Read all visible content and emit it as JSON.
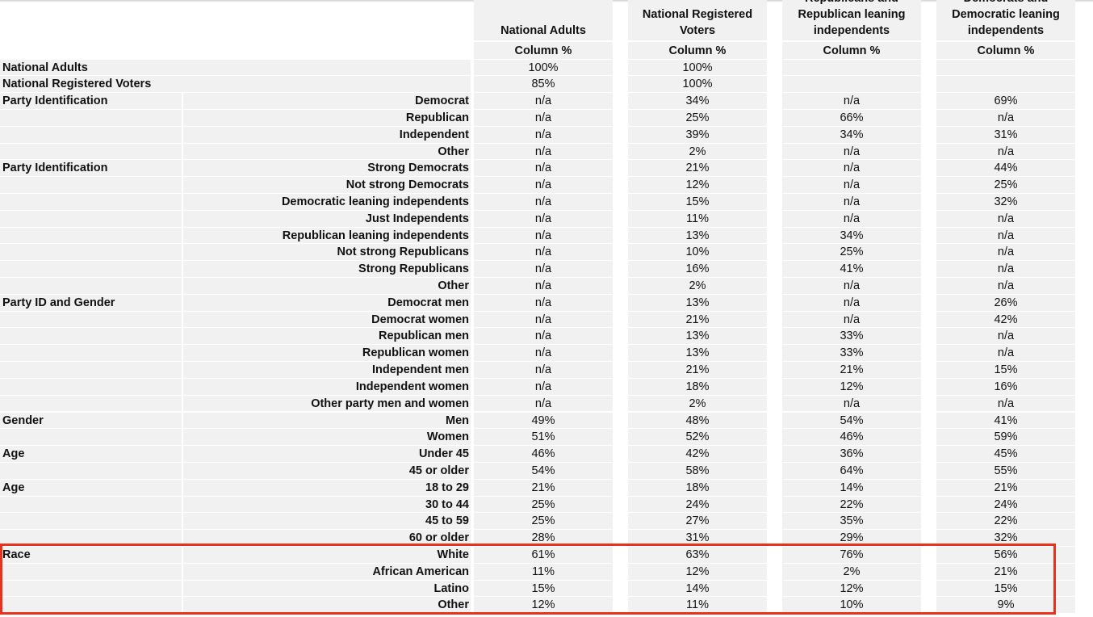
{
  "table": {
    "columns": [
      {
        "name": "National Adults",
        "unit": "Column %"
      },
      {
        "name": "National Registered Voters",
        "unit": "Column %"
      },
      {
        "name": "Republicans and Republican leaning independents",
        "unit": "Column %"
      },
      {
        "name": "Democrats and Democratic leaning independents",
        "unit": "Column %"
      }
    ],
    "rows": [
      {
        "group": "National Adults",
        "values": [
          "100%",
          "100%",
          null,
          null
        ]
      },
      {
        "group": "National Registered Voters",
        "values": [
          "85%",
          "100%",
          null,
          null
        ]
      },
      {
        "group": "Party Identification",
        "label": "Democrat",
        "values": [
          "n/a",
          "34%",
          "n/a",
          "69%"
        ]
      },
      {
        "label": "Republican",
        "values": [
          "n/a",
          "25%",
          "66%",
          "n/a"
        ]
      },
      {
        "label": "Independent",
        "values": [
          "n/a",
          "39%",
          "34%",
          "31%"
        ]
      },
      {
        "label": "Other",
        "values": [
          "n/a",
          "2%",
          "n/a",
          "n/a"
        ]
      },
      {
        "group": "Party Identification",
        "label": "Strong Democrats",
        "values": [
          "n/a",
          "21%",
          "n/a",
          "44%"
        ]
      },
      {
        "label": "Not strong Democrats",
        "values": [
          "n/a",
          "12%",
          "n/a",
          "25%"
        ]
      },
      {
        "label": "Democratic leaning independents",
        "values": [
          "n/a",
          "15%",
          "n/a",
          "32%"
        ]
      },
      {
        "label": "Just Independents",
        "values": [
          "n/a",
          "11%",
          "n/a",
          "n/a"
        ]
      },
      {
        "label": "Republican leaning independents",
        "values": [
          "n/a",
          "13%",
          "34%",
          "n/a"
        ]
      },
      {
        "label": "Not strong Republicans",
        "values": [
          "n/a",
          "10%",
          "25%",
          "n/a"
        ]
      },
      {
        "label": "Strong Republicans",
        "values": [
          "n/a",
          "16%",
          "41%",
          "n/a"
        ]
      },
      {
        "label": "Other",
        "values": [
          "n/a",
          "2%",
          "n/a",
          "n/a"
        ]
      },
      {
        "group": "Party ID and Gender",
        "label": "Democrat men",
        "values": [
          "n/a",
          "13%",
          "n/a",
          "26%"
        ]
      },
      {
        "label": "Democrat women",
        "values": [
          "n/a",
          "21%",
          "n/a",
          "42%"
        ]
      },
      {
        "label": "Republican men",
        "values": [
          "n/a",
          "13%",
          "33%",
          "n/a"
        ]
      },
      {
        "label": "Republican women",
        "values": [
          "n/a",
          "13%",
          "33%",
          "n/a"
        ]
      },
      {
        "label": "Independent men",
        "values": [
          "n/a",
          "21%",
          "21%",
          "15%"
        ]
      },
      {
        "label": "Independent women",
        "values": [
          "n/a",
          "18%",
          "12%",
          "16%"
        ]
      },
      {
        "label": "Other party men and women",
        "values": [
          "n/a",
          "2%",
          "n/a",
          "n/a"
        ]
      },
      {
        "group": "Gender",
        "label": "Men",
        "values": [
          "49%",
          "48%",
          "54%",
          "41%"
        ]
      },
      {
        "label": "Women",
        "values": [
          "51%",
          "52%",
          "46%",
          "59%"
        ]
      },
      {
        "group": "Age",
        "label": "Under 45",
        "values": [
          "46%",
          "42%",
          "36%",
          "45%"
        ]
      },
      {
        "label": "45 or older",
        "values": [
          "54%",
          "58%",
          "64%",
          "55%"
        ]
      },
      {
        "group": "Age",
        "label": "18 to 29",
        "values": [
          "21%",
          "18%",
          "14%",
          "21%"
        ]
      },
      {
        "label": "30 to 44",
        "values": [
          "25%",
          "24%",
          "22%",
          "24%"
        ]
      },
      {
        "label": "45 to 59",
        "values": [
          "25%",
          "27%",
          "35%",
          "22%"
        ]
      },
      {
        "label": "60 or older",
        "values": [
          "28%",
          "31%",
          "29%",
          "32%"
        ]
      },
      {
        "group": "Race",
        "label": "White",
        "values": [
          "61%",
          "63%",
          "76%",
          "56%"
        ]
      },
      {
        "label": "African American",
        "values": [
          "11%",
          "12%",
          "2%",
          "21%"
        ]
      },
      {
        "label": "Latino",
        "values": [
          "15%",
          "14%",
          "12%",
          "15%"
        ]
      },
      {
        "label": "Other",
        "values": [
          "12%",
          "11%",
          "10%",
          "9%"
        ]
      }
    ]
  }
}
